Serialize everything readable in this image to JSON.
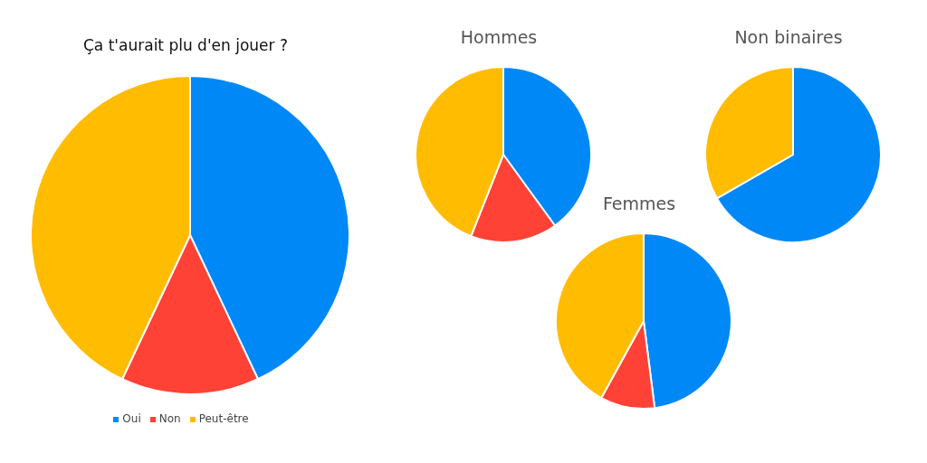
{
  "chart_data": [
    {
      "type": "pie",
      "title": "Ça t'aurait plu d'en jouer ?",
      "categories": [
        "Oui",
        "Non",
        "Peut-être"
      ],
      "values": [
        43,
        14,
        43
      ],
      "colors": [
        "#0088f7",
        "#ff4136",
        "#ffbc00"
      ],
      "legend": "bottom"
    },
    {
      "type": "pie",
      "title": "Hommes",
      "categories": [
        null,
        null,
        null
      ],
      "values": [
        40,
        16,
        44
      ],
      "colors": [
        "#0088f7",
        "#ff4136",
        "#ffbc00"
      ]
    },
    {
      "type": "pie",
      "title": "Femmes",
      "categories": [
        null,
        null,
        null
      ],
      "values": [
        48,
        10,
        42
      ],
      "colors": [
        "#0088f7",
        "#ff4136",
        "#ffbc00"
      ]
    },
    {
      "type": "pie",
      "title": "Non binaires",
      "categories": [
        null,
        null
      ],
      "values": [
        66.7,
        33.3
      ],
      "colors": [
        "#0088f7",
        "#ffbc00"
      ]
    }
  ]
}
